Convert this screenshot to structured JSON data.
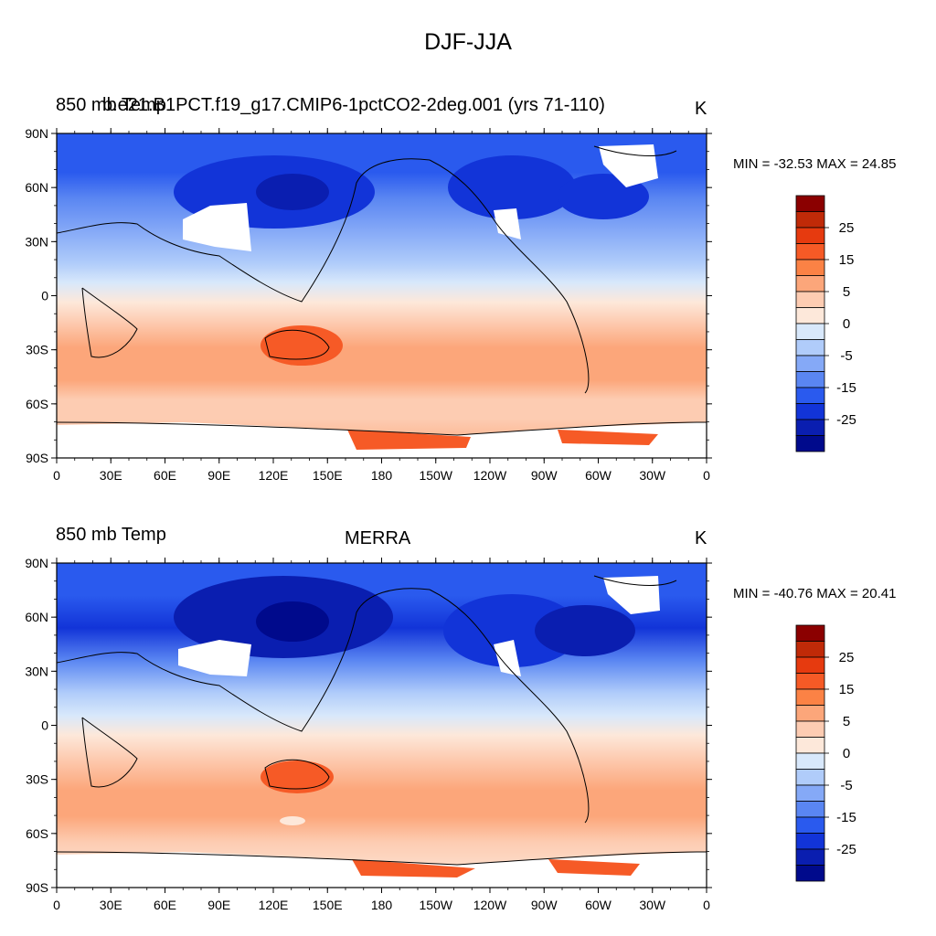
{
  "figure": {
    "title": "DJF-JJA",
    "panels": [
      {
        "left_label": "850 mb Temp",
        "center_label": "b.e21.B1PCT.f19_g17.CMIP6-1pctCO2-2deg.001 (yrs 71-110)",
        "unit": "K",
        "min_max": "MIN = -32.53 MAX =  24.85",
        "min": -32.53,
        "max": 24.85
      },
      {
        "left_label": "850 mb Temp",
        "center_label": "MERRA",
        "unit": "K",
        "min_max": "MIN = -40.76 MAX =  20.41",
        "min": -40.76,
        "max": 20.41
      }
    ],
    "lat_ticks": [
      "90N",
      "60N",
      "30N",
      "0",
      "30S",
      "60S",
      "90S"
    ],
    "lon_ticks": [
      "0",
      "30E",
      "60E",
      "90E",
      "120E",
      "150E",
      "180",
      "150W",
      "120W",
      "90W",
      "60W",
      "30W",
      "0"
    ],
    "colorbar": {
      "labels": [
        "25",
        "15",
        "5",
        "0",
        "-5",
        "-15",
        "-25"
      ],
      "colors": [
        "#8b0000",
        "#c02a08",
        "#e63a0f",
        "#f65a26",
        "#fb8245",
        "#fca67a",
        "#fdccb2",
        "#fde8da",
        "#d8e8fb",
        "#b0ccfa",
        "#85a9f7",
        "#5a86f2",
        "#2a5aee",
        "#1234d8",
        "#0a1eb0",
        "#000a8c"
      ]
    }
  }
}
